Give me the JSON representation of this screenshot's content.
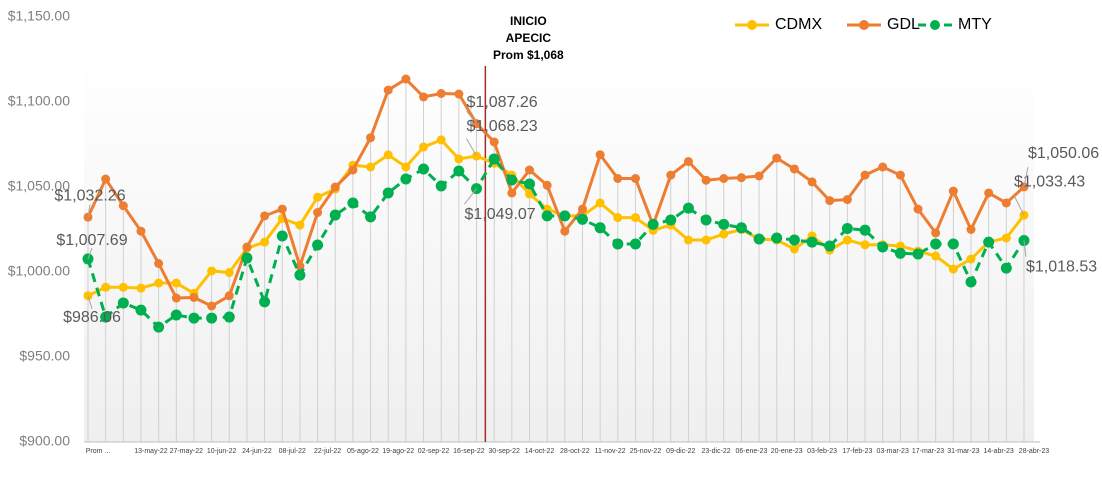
{
  "chart_data": {
    "type": "line",
    "categories": [
      "Prom ...",
      null,
      null,
      "13-may-22",
      null,
      "27-may-22",
      null,
      "10-jun-22",
      null,
      "24-jun-22",
      null,
      "08-jul-22",
      null,
      "22-jul-22",
      null,
      "05-ago-22",
      null,
      "19-ago-22",
      null,
      "02-sep-22",
      null,
      "16-sep-22",
      null,
      "30-sep-22",
      null,
      "14-oct-22",
      null,
      "28-oct-22",
      null,
      "11-nov-22",
      null,
      "25-nov-22",
      null,
      "09-dic-22",
      null,
      "23-dic-22",
      null,
      "06-ene-23",
      null,
      "20-ene-23",
      null,
      "03-feb-23",
      null,
      "17-feb-23",
      null,
      "03-mar-23",
      null,
      "17-mar-23",
      null,
      "31-mar-23",
      null,
      "14-abr-23",
      null,
      "28-abr-23"
    ],
    "series": [
      {
        "name": "CDMX",
        "color": "#ffc000",
        "dashed": false,
        "values": [
          986.06,
          991,
          991,
          990.5,
          993.5,
          993.5,
          987.5,
          1000.6,
          999.7,
          1014,
          1017.6,
          1031.5,
          1027.6,
          1044,
          1048.8,
          1062.8,
          1061.8,
          1068.9,
          1061.8,
          1073.5,
          1077.7,
          1066.5,
          1068.23,
          1064,
          1057,
          1045.9,
          1037,
          1033,
          1033,
          1040.6,
          1032,
          1032,
          1024.5,
          1027.6,
          1018.8,
          1018.8,
          1022.3,
          1025,
          1019.4,
          1018.8,
          1013.5,
          1021.2,
          1012.9,
          1018.8,
          1016,
          1016,
          1015.3,
          1012.3,
          1009.4,
          1001.7,
          1007.6,
          1017.6,
          1020,
          1033.43
        ],
        "value_labels": [
          "$986.06",
          null,
          null,
          null,
          null,
          null,
          null,
          null,
          null,
          null,
          null,
          null,
          null,
          null,
          null,
          null,
          null,
          null,
          null,
          null,
          null,
          null,
          "$1,068.23",
          null,
          null,
          null,
          null,
          null,
          null,
          null,
          null,
          null,
          null,
          null,
          null,
          null,
          null,
          null,
          null,
          null,
          null,
          null,
          null,
          null,
          null,
          null,
          null,
          null,
          null,
          null,
          null,
          null,
          null,
          "$1,033.43"
        ]
      },
      {
        "name": "GDL",
        "color": "#ed7d31",
        "dashed": false,
        "values": [
          1032.26,
          1054.7,
          1039,
          1024,
          1005,
          984.7,
          985,
          980,
          986,
          1014.7,
          1033,
          1037,
          1003.5,
          1035,
          1050,
          1060,
          1079,
          1107,
          1113.5,
          1103,
          1105,
          1104.7,
          1087.26,
          1076.5,
          1046.5,
          1060,
          1051,
          1024,
          1037,
          1069,
          1055,
          1055,
          1027.6,
          1057,
          1065,
          1054,
          1055,
          1055.5,
          1056.5,
          1067,
          1060.6,
          1053,
          1042,
          1042.6,
          1057,
          1061.8,
          1057,
          1037,
          1023,
          1047.6,
          1025,
          1046.5,
          1040.6,
          1050.06
        ],
        "value_labels": [
          "$1,032.26",
          null,
          null,
          null,
          null,
          null,
          null,
          null,
          null,
          null,
          null,
          null,
          null,
          null,
          null,
          null,
          null,
          null,
          null,
          null,
          null,
          null,
          "$1,087.26",
          null,
          null,
          null,
          null,
          null,
          null,
          null,
          null,
          null,
          null,
          null,
          null,
          null,
          null,
          null,
          null,
          null,
          null,
          null,
          null,
          null,
          null,
          null,
          null,
          null,
          null,
          null,
          null,
          null,
          null,
          "$1,050.06"
        ]
      },
      {
        "name": "MTY",
        "color": "#00b050",
        "dashed": true,
        "values": [
          1007.69,
          973.5,
          981.8,
          977.6,
          967.6,
          974.7,
          972.9,
          972.9,
          973.5,
          1008.2,
          982.4,
          1021.2,
          998.2,
          1015.9,
          1033.5,
          1040.6,
          1032.4,
          1046.5,
          1054.7,
          1060.6,
          1050.6,
          1059.4,
          1049.07,
          1066.5,
          1054.1,
          1051.8,
          1033,
          1033,
          1031,
          1026,
          1016.5,
          1016.5,
          1028,
          1030.6,
          1037.6,
          1030.6,
          1028,
          1026,
          1019.4,
          1020,
          1018.8,
          1017.6,
          1015.3,
          1025.6,
          1024.6,
          1014.7,
          1011,
          1010.6,
          1016.5,
          1016.5,
          994.1,
          1017.6,
          1002.3,
          1018.53
        ],
        "value_labels": [
          "$1,007.69",
          null,
          null,
          null,
          null,
          null,
          null,
          null,
          null,
          null,
          null,
          null,
          null,
          null,
          null,
          null,
          null,
          null,
          null,
          null,
          null,
          null,
          "$1,049.07",
          null,
          null,
          null,
          null,
          null,
          null,
          null,
          null,
          null,
          null,
          null,
          null,
          null,
          null,
          null,
          null,
          null,
          null,
          null,
          null,
          null,
          null,
          null,
          null,
          null,
          null,
          null,
          null,
          null,
          null,
          "$1,018.53"
        ]
      }
    ],
    "ylim": [
      900,
      1150
    ],
    "yticks": [
      {
        "value": 900,
        "label": "$900.00"
      },
      {
        "value": 950,
        "label": "$950.00"
      },
      {
        "value": 1000,
        "label": "$1,000.00"
      },
      {
        "value": 1050,
        "label": "$1,050.00"
      },
      {
        "value": 1100,
        "label": "$1,100.00"
      },
      {
        "value": 1150,
        "label": "$1,150.00"
      }
    ],
    "grid": false,
    "legend": "top-right",
    "annotation": {
      "lines": [
        "INICIO",
        "APECIC",
        "Prom $1,068"
      ],
      "color": "#a52a2a"
    }
  }
}
